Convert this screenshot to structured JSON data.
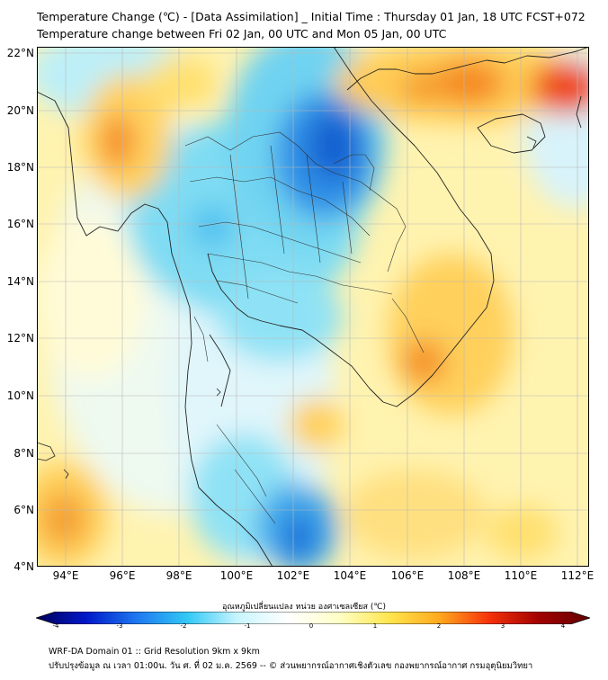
{
  "title_line1": "Temperature Change (℃) - [Data Assimilation] _ Initial Time : Thursday 01 Jan, 18 UTC FCST+072",
  "title_line2": "Temperature change between Fri 02 Jan, 00 UTC and Mon 05 Jan, 00 UTC",
  "lat_labels": [
    "22°N",
    "20°N",
    "18°N",
    "16°N",
    "14°N",
    "12°N",
    "10°N",
    "8°N",
    "6°N",
    "4°N"
  ],
  "lon_labels": [
    "94°E",
    "96°E",
    "98°E",
    "100°E",
    "102°E",
    "104°E",
    "106°E",
    "108°E",
    "110°E",
    "112°E"
  ],
  "colorbar": {
    "title": "อุณหภูมิเปลี่ยนแปลง หน่วย องศาเซลเซียส (℃)",
    "min": -4,
    "max": 4,
    "ticks": [
      "-4",
      "-3",
      "-2",
      "-1",
      "0",
      "1",
      "2",
      "3",
      "4"
    ],
    "colors": [
      "#00005a",
      "#0019c8",
      "#1e78f0",
      "#32c8f5",
      "#c8f5ff",
      "#ffffff",
      "#ffffc8",
      "#ffe650",
      "#ffaa1e",
      "#f5320a",
      "#a00000",
      "#640000"
    ]
  },
  "footer_line1": "WRF-DA Domain 01 :: Grid Resolution 9km x 9km",
  "footer_line2": "ปรับปรุงข้อมูล ณ เวลา 01:00น. วัน ศ. ที่ 02 ม.ค. 2569 -- © ส่วนพยากรณ์อากาศเชิงตัวเลข กองพยากรณ์อากาศ กรมอุตุนิยมวิทยา"
}
